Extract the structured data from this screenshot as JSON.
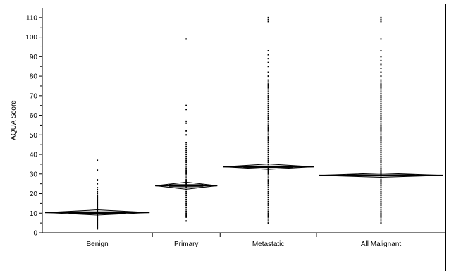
{
  "chart_data": {
    "type": "scatter",
    "subtype": "means-diamonds-oneway",
    "title": "",
    "xlabel": "",
    "ylabel": "AQUA Score",
    "ylim": [
      0,
      115
    ],
    "y_ticks": [
      0,
      10,
      20,
      30,
      40,
      50,
      60,
      70,
      80,
      90,
      100,
      110
    ],
    "grid": false,
    "categories": [
      "Benign",
      "Primary",
      "Metastatic",
      "All Malignant"
    ],
    "category_width_share": [
      0.273,
      0.168,
      0.239,
      0.32
    ],
    "groups": [
      {
        "category": "Benign",
        "mean": 10.3,
        "ci": [
          9.0,
          11.7
        ],
        "grand_mean_line": 10.3,
        "range": [
          2,
          37
        ],
        "points": [
          2,
          2.5,
          3,
          3.5,
          4,
          4.5,
          5,
          5.5,
          6,
          6.5,
          7,
          7.5,
          8,
          8.5,
          9,
          9.5,
          10,
          10.5,
          11,
          11.5,
          12,
          12.5,
          13,
          13.5,
          14,
          14.5,
          15,
          15.5,
          16,
          16.5,
          17,
          17.5,
          18,
          18.5,
          19,
          20,
          21,
          22,
          23,
          25,
          27,
          32,
          37
        ]
      },
      {
        "category": "Primary",
        "mean": 24.0,
        "ci": [
          22.2,
          25.8
        ],
        "grand_mean_line": 24.0,
        "range": [
          6,
          99
        ],
        "points": [
          6,
          8,
          9,
          10,
          11,
          12,
          13,
          14,
          15,
          16,
          17,
          18,
          19,
          20,
          21,
          22,
          23,
          24,
          25,
          26,
          27,
          28,
          29,
          30,
          31,
          32,
          33,
          34,
          35,
          36,
          37,
          38,
          39,
          40,
          41,
          42,
          43,
          44,
          45,
          46,
          50,
          52,
          56,
          57,
          63,
          65,
          99
        ]
      },
      {
        "category": "Metastatic",
        "mean": 33.7,
        "ci": [
          32.4,
          35.1
        ],
        "grand_mean_line": 33.7,
        "range": [
          5,
          110
        ],
        "points": [
          5,
          6,
          7,
          8,
          9,
          10,
          11,
          12,
          13,
          14,
          15,
          16,
          17,
          18,
          19,
          20,
          21,
          22,
          23,
          24,
          25,
          26,
          27,
          28,
          29,
          30,
          31,
          32,
          33,
          34,
          35,
          36,
          37,
          38,
          39,
          40,
          41,
          42,
          43,
          44,
          45,
          46,
          47,
          48,
          49,
          50,
          51,
          52,
          53,
          54,
          55,
          56,
          57,
          58,
          59,
          60,
          61,
          62,
          63,
          64,
          65,
          66,
          67,
          68,
          69,
          70,
          71,
          72,
          73,
          74,
          75,
          76,
          77,
          78,
          80,
          82,
          85,
          87,
          89,
          91,
          93,
          108,
          109,
          110
        ]
      },
      {
        "category": "All Malignant",
        "mean": 29.3,
        "ci": [
          28.3,
          30.4
        ],
        "grand_mean_line": 29.3,
        "range": [
          5,
          110
        ],
        "points": [
          5,
          6,
          7,
          8,
          9,
          10,
          11,
          12,
          13,
          14,
          15,
          16,
          17,
          18,
          19,
          20,
          21,
          22,
          23,
          24,
          25,
          26,
          27,
          28,
          29,
          30,
          31,
          32,
          33,
          34,
          35,
          36,
          37,
          38,
          39,
          40,
          41,
          42,
          43,
          44,
          45,
          46,
          47,
          48,
          49,
          50,
          51,
          52,
          53,
          54,
          55,
          56,
          57,
          58,
          59,
          60,
          61,
          62,
          63,
          64,
          65,
          66,
          67,
          68,
          69,
          70,
          71,
          72,
          73,
          74,
          75,
          76,
          77,
          78,
          80,
          82,
          84,
          86,
          88,
          90,
          93,
          99,
          108,
          109,
          110
        ]
      }
    ],
    "colors": {
      "axis": "#000000",
      "points": "#000000",
      "diamond": "#000000"
    }
  }
}
